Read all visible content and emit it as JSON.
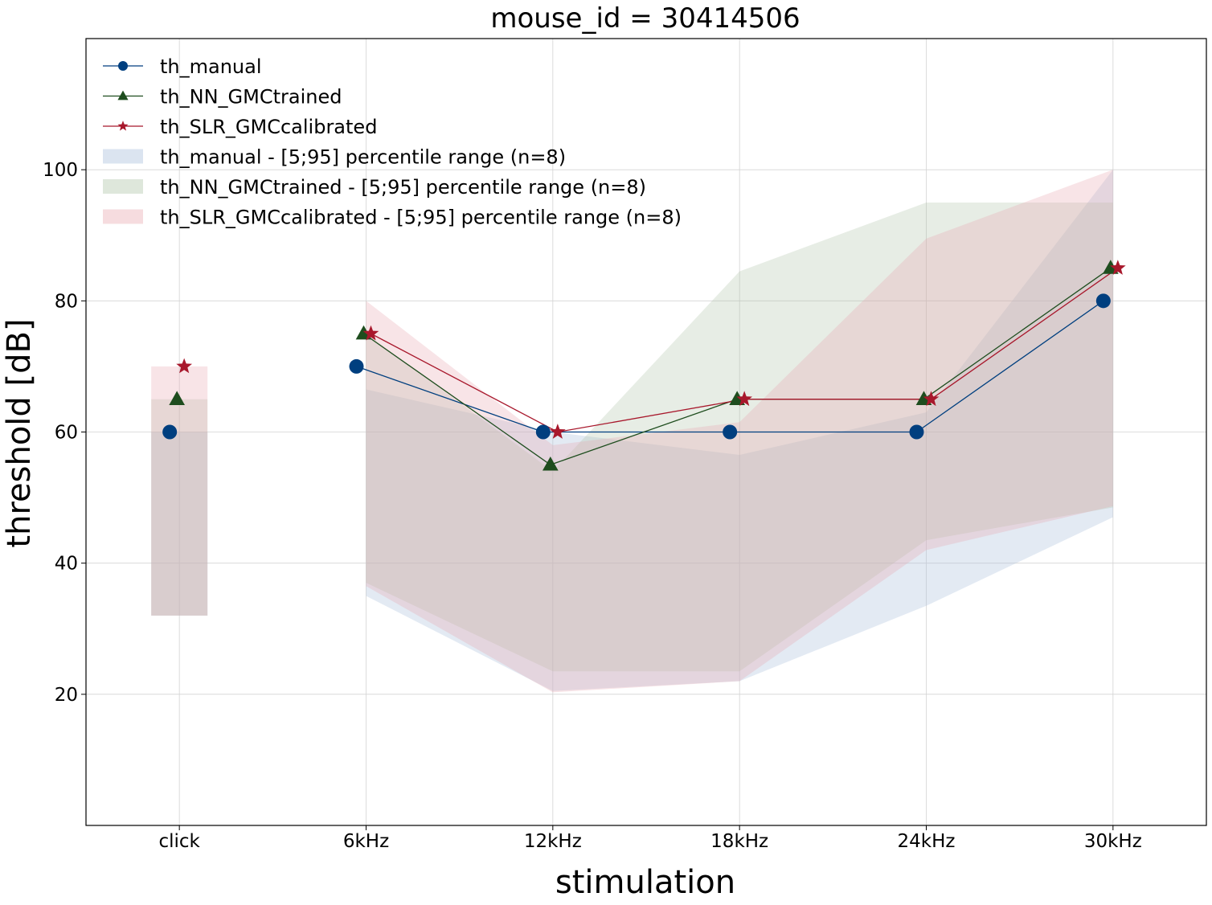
{
  "chart_data": {
    "type": "line",
    "title": "mouse_id = 30414506",
    "xlabel": "stimulation",
    "ylabel": "threshold [dB]",
    "categories": [
      "click",
      "6kHz",
      "12kHz",
      "18kHz",
      "24kHz",
      "30kHz"
    ],
    "ylim": [
      0,
      120
    ],
    "yticks": [
      20,
      40,
      60,
      80,
      100
    ],
    "grid": true,
    "legend_position": "top-left",
    "series": [
      {
        "name": "th_manual",
        "marker": "circle",
        "color": "#003f7f",
        "values": [
          60,
          70,
          60,
          60,
          60,
          80
        ]
      },
      {
        "name": "th_NN_GMCtrained",
        "marker": "triangle",
        "color": "#1e4d1e",
        "values": [
          65,
          75,
          55,
          65,
          65,
          85
        ]
      },
      {
        "name": "th_SLR_GMCcalibrated",
        "marker": "star",
        "color": "#a8182c",
        "values": [
          70,
          75,
          60,
          65,
          65,
          85
        ]
      }
    ],
    "bands": [
      {
        "name": "th_manual - [5;95] percentile range (n=8)",
        "color": "#b0c4de",
        "opacity": 0.35,
        "low": [
          32,
          35,
          20.5,
          22,
          33.5,
          47
        ],
        "high": [
          60,
          66.5,
          60,
          56.5,
          63,
          100
        ]
      },
      {
        "name": "th_NN_GMCtrained - [5;95] percentile range (n=8)",
        "color": "#a9bfa0",
        "opacity": 0.28,
        "low": [
          32,
          37,
          23.5,
          23.5,
          43.5,
          48.5
        ],
        "high": [
          65,
          75,
          54,
          84.5,
          95,
          95
        ]
      },
      {
        "name": "th_SLR_GMCcalibrated - [5;95] percentile range (n=8)",
        "color": "#e8a7ae",
        "opacity": 0.3,
        "low": [
          32,
          36.5,
          20.3,
          22,
          42,
          48.7
        ],
        "high": [
          70,
          80,
          58,
          61.5,
          89.5,
          100
        ]
      }
    ]
  }
}
